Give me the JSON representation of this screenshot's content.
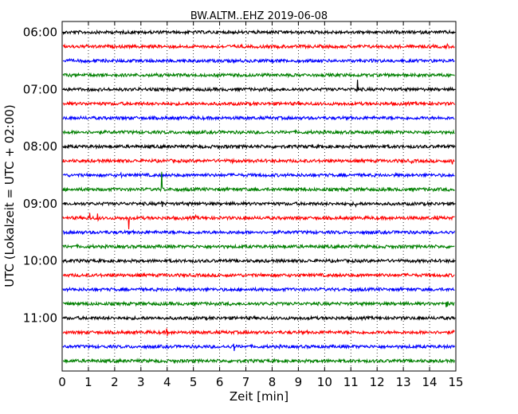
{
  "chart_data": {
    "type": "line",
    "title": "BW.ALTM..EHZ 2019-06-08",
    "xlabel": "Zeit  [min]",
    "ylabel": "UTC (Lokalzeit = UTC + 02:00)",
    "xlim": [
      0,
      15
    ],
    "x_ticks": [
      "0",
      "1",
      "2",
      "3",
      "4",
      "5",
      "6",
      "7",
      "8",
      "9",
      "10",
      "11",
      "12",
      "13",
      "14",
      "15"
    ],
    "y_ticks": [
      "06:00",
      "07:00",
      "08:00",
      "09:00",
      "10:00",
      "11:00"
    ],
    "grid": "vertical dotted",
    "trace_start_times": [
      "06:00",
      "06:15",
      "06:30",
      "06:45",
      "07:00",
      "07:15",
      "07:30",
      "07:45",
      "08:00",
      "08:15",
      "08:30",
      "08:45",
      "09:00",
      "09:15",
      "09:30",
      "09:45",
      "10:00",
      "10:15",
      "10:30",
      "10:45",
      "11:00",
      "11:15",
      "11:30",
      "11:45"
    ],
    "trace_colors": [
      "#000000",
      "#ff0000",
      "#0000ff",
      "#008000"
    ],
    "events": [
      {
        "trace": 1,
        "t": 14.65,
        "amp": 0.45
      },
      {
        "trace": 4,
        "t": 5.9,
        "amp": 0.25
      },
      {
        "trace": 4,
        "t": 11.25,
        "amp": 1.0
      },
      {
        "trace": 8,
        "t": 6.3,
        "amp": 0.15
      },
      {
        "trace": 9,
        "t": 3.75,
        "amp": 0.2
      },
      {
        "trace": 9,
        "t": 6.5,
        "amp": 0.45
      },
      {
        "trace": 9,
        "t": 10.7,
        "amp": 0.15
      },
      {
        "trace": 9,
        "t": 11.5,
        "amp": 0.25
      },
      {
        "trace": 9,
        "t": 13.3,
        "amp": 0.35
      },
      {
        "trace": 9,
        "t": 14.85,
        "amp": 0.55
      },
      {
        "trace": 10,
        "t": 2.25,
        "amp": 0.25
      },
      {
        "trace": 11,
        "t": 3.8,
        "amp": 1.6
      },
      {
        "trace": 12,
        "t": 3.8,
        "amp": 0.8
      },
      {
        "trace": 12,
        "t": 11.2,
        "amp": 0.2
      },
      {
        "trace": 13,
        "t": 1.05,
        "amp": 0.6
      },
      {
        "trace": 13,
        "t": 1.35,
        "amp": 0.5
      },
      {
        "trace": 13,
        "t": 2.55,
        "amp": 0.9
      },
      {
        "trace": 13,
        "t": 5.1,
        "amp": 0.2
      },
      {
        "trace": 13,
        "t": 14.3,
        "amp": 0.2
      },
      {
        "trace": 19,
        "t": 2.95,
        "amp": 0.25
      },
      {
        "trace": 19,
        "t": 14.65,
        "amp": 1.0
      },
      {
        "trace": 21,
        "t": 4.0,
        "amp": 0.35
      },
      {
        "trace": 22,
        "t": 6.55,
        "amp": 0.5
      }
    ]
  }
}
